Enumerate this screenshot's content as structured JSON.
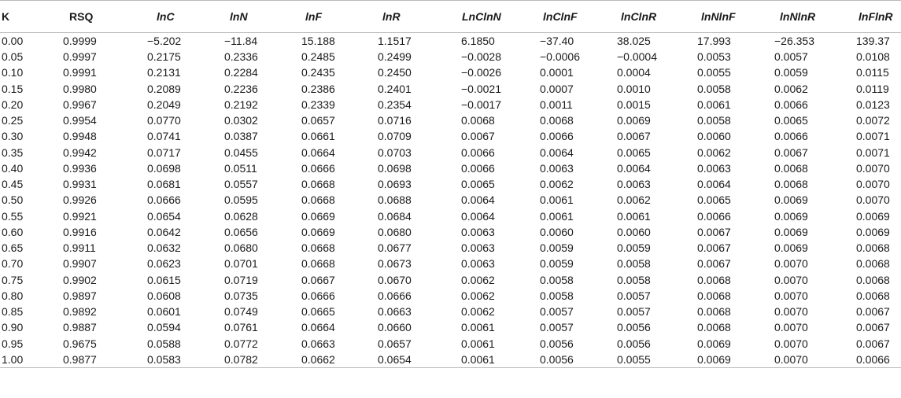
{
  "table": {
    "headers": [
      "K",
      "RSQ",
      "lnC",
      "lnN",
      "lnF",
      "lnR",
      "LnClnN",
      "lnClnF",
      "lnClnR",
      "lnNlnF",
      "lnNlnR",
      "lnFlnR"
    ],
    "rows": [
      [
        "0.00",
        "0.9999",
        "−5.202",
        "−11.84",
        "15.188",
        "1.1517",
        "6.1850",
        "−37.40",
        "38.025",
        "17.993",
        "−26.353",
        "139.37"
      ],
      [
        "0.05",
        "0.9997",
        "0.2175",
        "0.2336",
        "0.2485",
        "0.2499",
        "−0.0028",
        "−0.0006",
        "−0.0004",
        "0.0053",
        "0.0057",
        "0.0108"
      ],
      [
        "0.10",
        "0.9991",
        "0.2131",
        "0.2284",
        "0.2435",
        "0.2450",
        "−0.0026",
        "0.0001",
        "0.0004",
        "0.0055",
        "0.0059",
        "0.0115"
      ],
      [
        "0.15",
        "0.9980",
        "0.2089",
        "0.2236",
        "0.2386",
        "0.2401",
        "−0.0021",
        "0.0007",
        "0.0010",
        "0.0058",
        "0.0062",
        "0.0119"
      ],
      [
        "0.20",
        "0.9967",
        "0.2049",
        "0.2192",
        "0.2339",
        "0.2354",
        "−0.0017",
        "0.0011",
        "0.0015",
        "0.0061",
        "0.0066",
        "0.0123"
      ],
      [
        "0.25",
        "0.9954",
        "0.0770",
        "0.0302",
        "0.0657",
        "0.0716",
        "0.0068",
        "0.0068",
        "0.0069",
        "0.0058",
        "0.0065",
        "0.0072"
      ],
      [
        "0.30",
        "0.9948",
        "0.0741",
        "0.0387",
        "0.0661",
        "0.0709",
        "0.0067",
        "0.0066",
        "0.0067",
        "0.0060",
        "0.0066",
        "0.0071"
      ],
      [
        "0.35",
        "0.9942",
        "0.0717",
        "0.0455",
        "0.0664",
        "0.0703",
        "0.0066",
        "0.0064",
        "0.0065",
        "0.0062",
        "0.0067",
        "0.0071"
      ],
      [
        "0.40",
        "0.9936",
        "0.0698",
        "0.0511",
        "0.0666",
        "0.0698",
        "0.0066",
        "0.0063",
        "0.0064",
        "0.0063",
        "0.0068",
        "0.0070"
      ],
      [
        "0.45",
        "0.9931",
        "0.0681",
        "0.0557",
        "0.0668",
        "0.0693",
        "0.0065",
        "0.0062",
        "0.0063",
        "0.0064",
        "0.0068",
        "0.0070"
      ],
      [
        "0.50",
        "0.9926",
        "0.0666",
        "0.0595",
        "0.0668",
        "0.0688",
        "0.0064",
        "0.0061",
        "0.0062",
        "0.0065",
        "0.0069",
        "0.0070"
      ],
      [
        "0.55",
        "0.9921",
        "0.0654",
        "0.0628",
        "0.0669",
        "0.0684",
        "0.0064",
        "0.0061",
        "0.0061",
        "0.0066",
        "0.0069",
        "0.0069"
      ],
      [
        "0.60",
        "0.9916",
        "0.0642",
        "0.0656",
        "0.0669",
        "0.0680",
        "0.0063",
        "0.0060",
        "0.0060",
        "0.0067",
        "0.0069",
        "0.0069"
      ],
      [
        "0.65",
        "0.9911",
        "0.0632",
        "0.0680",
        "0.0668",
        "0.0677",
        "0.0063",
        "0.0059",
        "0.0059",
        "0.0067",
        "0.0069",
        "0.0068"
      ],
      [
        "0.70",
        "0.9907",
        "0.0623",
        "0.0701",
        "0.0668",
        "0.0673",
        "0.0063",
        "0.0059",
        "0.0058",
        "0.0067",
        "0.0070",
        "0.0068"
      ],
      [
        "0.75",
        "0.9902",
        "0.0615",
        "0.0719",
        "0.0667",
        "0.0670",
        "0.0062",
        "0.0058",
        "0.0058",
        "0.0068",
        "0.0070",
        "0.0068"
      ],
      [
        "0.80",
        "0.9897",
        "0.0608",
        "0.0735",
        "0.0666",
        "0.0666",
        "0.0062",
        "0.0058",
        "0.0057",
        "0.0068",
        "0.0070",
        "0.0068"
      ],
      [
        "0.85",
        "0.9892",
        "0.0601",
        "0.0749",
        "0.0665",
        "0.0663",
        "0.0062",
        "0.0057",
        "0.0057",
        "0.0068",
        "0.0070",
        "0.0067"
      ],
      [
        "0.90",
        "0.9887",
        "0.0594",
        "0.0761",
        "0.0664",
        "0.0660",
        "0.0061",
        "0.0057",
        "0.0056",
        "0.0068",
        "0.0070",
        "0.0067"
      ],
      [
        "0.95",
        "0.9675",
        "0.0588",
        "0.0772",
        "0.0663",
        "0.0657",
        "0.0061",
        "0.0056",
        "0.0056",
        "0.0069",
        "0.0070",
        "0.0067"
      ],
      [
        "1.00",
        "0.9877",
        "0.0583",
        "0.0782",
        "0.0662",
        "0.0654",
        "0.0061",
        "0.0056",
        "0.0055",
        "0.0069",
        "0.0070",
        "0.0066"
      ]
    ]
  },
  "colors": {
    "rule": "#b8b8b8",
    "text": "#1a1a1a"
  }
}
